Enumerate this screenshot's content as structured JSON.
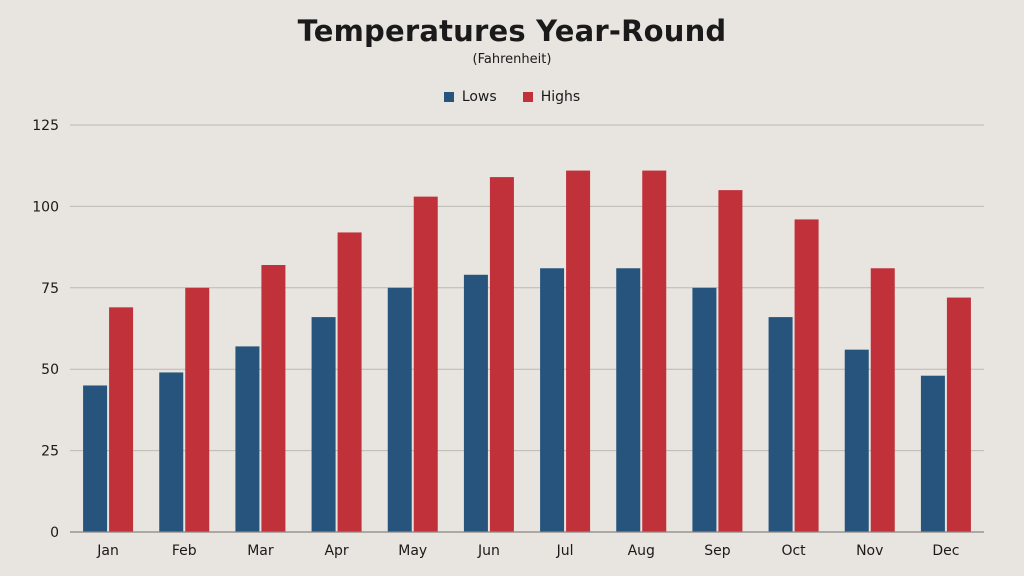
{
  "chart_data": {
    "type": "bar",
    "title": "Temperatures Year-Round",
    "subtitle": "(Fahrenheit)",
    "xlabel": "",
    "ylabel": "",
    "ylim": [
      0,
      125
    ],
    "yticks": [
      0,
      25,
      50,
      75,
      100,
      125
    ],
    "grid": true,
    "legend_position": "top-center",
    "categories": [
      "Jan",
      "Feb",
      "Mar",
      "Apr",
      "May",
      "Jun",
      "Jul",
      "Aug",
      "Sep",
      "Oct",
      "Nov",
      "Dec"
    ],
    "series": [
      {
        "name": "Lows",
        "color": "#26547c",
        "values": [
          45,
          49,
          57,
          66,
          75,
          79,
          81,
          81,
          75,
          66,
          56,
          48
        ]
      },
      {
        "name": "Highs",
        "color": "#c0313a",
        "values": [
          69,
          75,
          82,
          92,
          103,
          109,
          111,
          111,
          105,
          96,
          81,
          72
        ]
      }
    ]
  }
}
